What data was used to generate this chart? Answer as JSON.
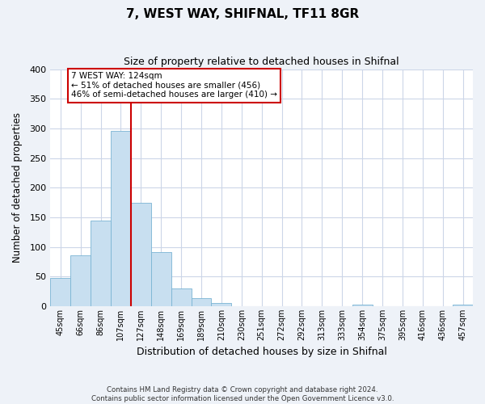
{
  "title": "7, WEST WAY, SHIFNAL, TF11 8GR",
  "subtitle": "Size of property relative to detached houses in Shifnal",
  "xlabel": "Distribution of detached houses by size in Shifnal",
  "ylabel": "Number of detached properties",
  "bar_labels": [
    "45sqm",
    "66sqm",
    "86sqm",
    "107sqm",
    "127sqm",
    "148sqm",
    "169sqm",
    "189sqm",
    "210sqm",
    "230sqm",
    "251sqm",
    "272sqm",
    "292sqm",
    "313sqm",
    "333sqm",
    "354sqm",
    "375sqm",
    "395sqm",
    "416sqm",
    "436sqm",
    "457sqm"
  ],
  "bar_values": [
    47,
    86,
    144,
    296,
    174,
    91,
    30,
    14,
    5,
    0,
    0,
    0,
    0,
    0,
    0,
    2,
    0,
    0,
    0,
    0,
    2
  ],
  "bar_color": "#c8dff0",
  "bar_edge_color": "#7ab4d4",
  "vline_color": "#cc0000",
  "vline_index": 4,
  "ylim": [
    0,
    400
  ],
  "yticks": [
    0,
    50,
    100,
    150,
    200,
    250,
    300,
    350,
    400
  ],
  "annotation_title": "7 WEST WAY: 124sqm",
  "annotation_line1": "← 51% of detached houses are smaller (456)",
  "annotation_line2": "46% of semi-detached houses are larger (410) →",
  "annotation_box_color": "#ffffff",
  "annotation_box_edge": "#cc0000",
  "footer_line1": "Contains HM Land Registry data © Crown copyright and database right 2024.",
  "footer_line2": "Contains public sector information licensed under the Open Government Licence v3.0.",
  "bg_color": "#eef2f8",
  "plot_bg_color": "#ffffff",
  "grid_color": "#ccd6e8"
}
